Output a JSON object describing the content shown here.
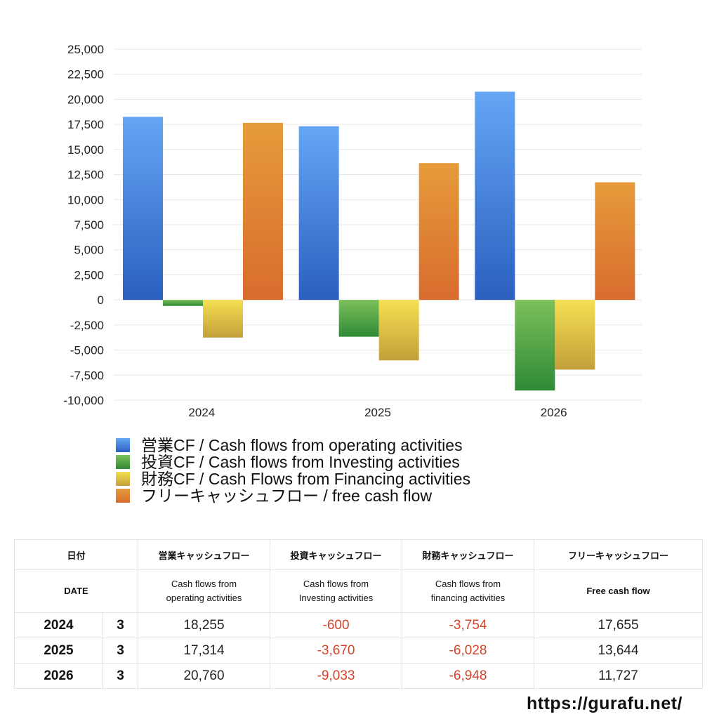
{
  "chart_data": {
    "type": "bar",
    "categories": [
      "2024",
      "2025",
      "2026"
    ],
    "series": [
      {
        "name": "営業CF / Cash flows from operating activities",
        "values": [
          18255,
          17314,
          20760
        ],
        "color_top": "#64a6f4",
        "color_bottom": "#2b5fc0"
      },
      {
        "name": "投資CF / Cash flows from Investing activities",
        "values": [
          -600,
          -3670,
          -9033
        ],
        "color_top": "#7cc05a",
        "color_bottom": "#2f8a36"
      },
      {
        "name": "財務CF / Cash Flows from Financing activities",
        "values": [
          -3754,
          -6028,
          -6948
        ],
        "color_top": "#f5df52",
        "color_bottom": "#c3a03a"
      },
      {
        "name": "フリーキャッシュフロー / free cash flow",
        "values": [
          17655,
          13644,
          11727
        ],
        "color_top": "#e69b3a",
        "color_bottom": "#d86c2e"
      }
    ],
    "ylim": [
      -10000,
      25000
    ],
    "yticks": [
      "25,000",
      "22,500",
      "20,000",
      "17,500",
      "15,000",
      "12,500",
      "10,000",
      "7,500",
      "5,000",
      "2,500",
      "0",
      "-2,500",
      "-5,000",
      "-7,500",
      "-10,000"
    ],
    "grid": true,
    "legend_position": "bottom-left"
  },
  "table": {
    "header_jp": [
      "日付",
      "営業キャッシュフロー",
      "投資キャッシュフロー",
      "財務キャッシュフロー",
      "フリーキャッシュフロー"
    ],
    "header_en": {
      "date": "DATE",
      "operating": [
        "Cash flows from",
        "operating activities"
      ],
      "investing": [
        "Cash flows from",
        "Investing activities"
      ],
      "financing": [
        "Cash flows from",
        "financing activities"
      ],
      "free": "Free cash flow"
    },
    "rows": [
      {
        "year": "2024",
        "month": "3",
        "operating": "18,255",
        "investing": "-600",
        "financing": "-3,754",
        "free": "17,655"
      },
      {
        "year": "2025",
        "month": "3",
        "operating": "17,314",
        "investing": "-3,670",
        "financing": "-6,028",
        "free": "13,644"
      },
      {
        "year": "2026",
        "month": "3",
        "operating": "20,760",
        "investing": "-9,033",
        "financing": "-6,948",
        "free": "11,727"
      }
    ]
  },
  "footer": {
    "url": "https://gurafu.net/"
  },
  "colors": {
    "negative_text": "#d2452c",
    "grid": "#e6e6e6",
    "table_border": "#e3e3e3"
  }
}
